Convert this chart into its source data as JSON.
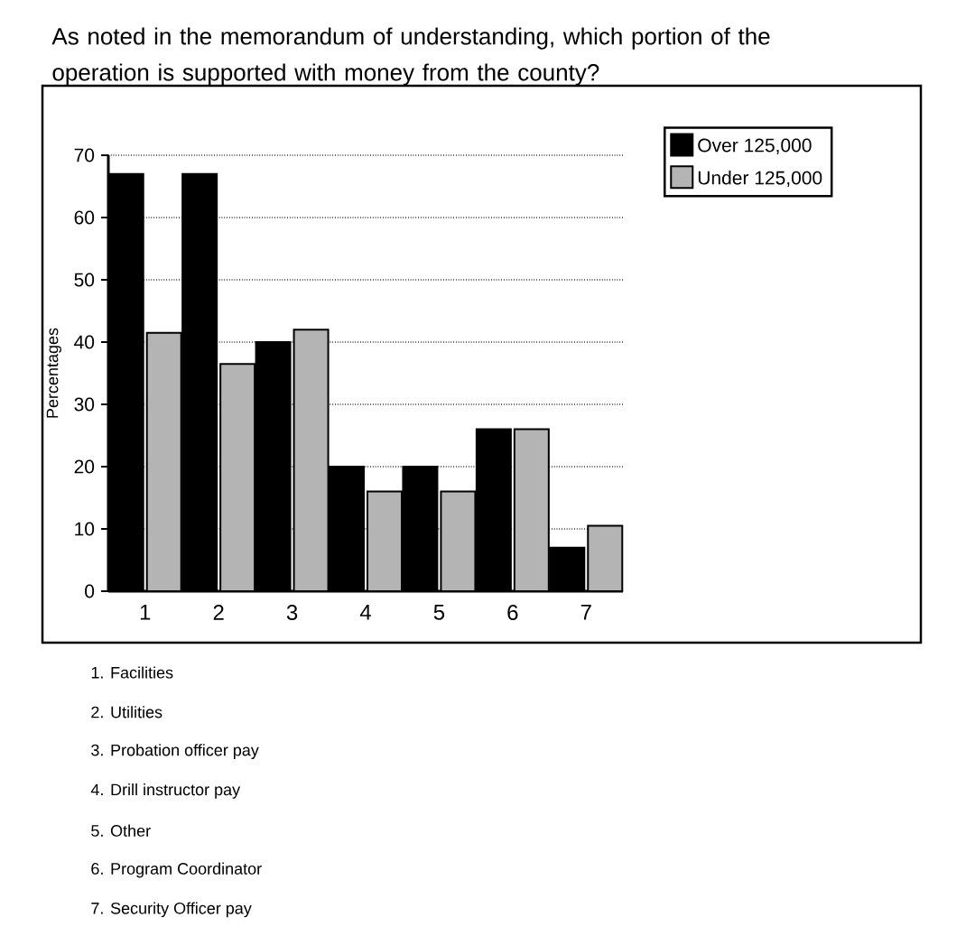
{
  "chart_data": {
    "type": "bar",
    "title": "As noted in the memorandum of understanding, which portion of the operation is supported with money from the county?",
    "ylabel": "Percentages",
    "categories": [
      "1",
      "2",
      "3",
      "4",
      "5",
      "6",
      "7"
    ],
    "series": [
      {
        "name": "Over 125,000",
        "color": "#000000",
        "values": [
          67,
          67,
          40,
          20,
          20,
          26,
          7
        ]
      },
      {
        "name": "Under 125,000",
        "color": "#b4b4b4",
        "values": [
          41.5,
          36.5,
          42,
          16,
          16,
          26,
          10.5
        ]
      }
    ],
    "ylim": [
      0,
      70
    ],
    "yticks": [
      0,
      10,
      20,
      30,
      40,
      50,
      60,
      70
    ],
    "grid": "y",
    "legend": "top right",
    "annotations": [
      "1. Facilities",
      "2. Utilities",
      "3. Probation officer pay",
      "4. Drill instructor pay",
      "5. Other",
      "6. Program Coordinator",
      "7. Security Officer pay"
    ]
  }
}
